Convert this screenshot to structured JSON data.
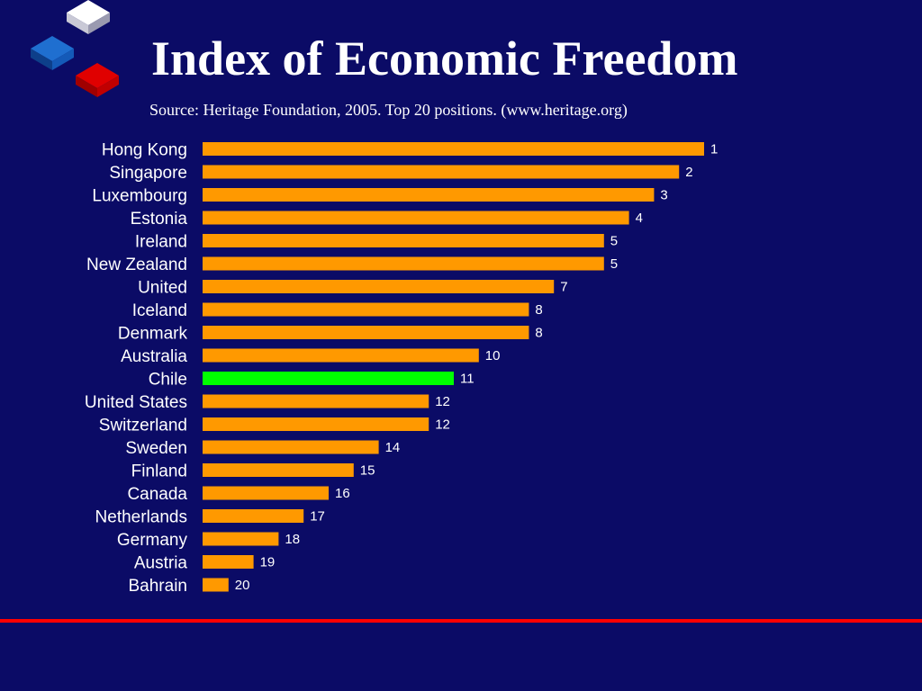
{
  "header": {
    "title": "Index of Economic Freedom",
    "subtitle": "Source: Heritage Foundation, 2005. Top 20 positions. (www.heritage.org)"
  },
  "colors": {
    "background": "#0b0b66",
    "bar": "#ff9900",
    "highlight_bar": "#00ff00",
    "divider": "#ff0000",
    "logo_white": "#ffffff",
    "logo_blue": "#1f6fd0",
    "logo_red": "#e00000"
  },
  "chart_data": {
    "type": "bar",
    "orientation": "horizontal",
    "categories": [
      "Hong Kong",
      "Singapore",
      "Luxembourg",
      "Estonia",
      "Ireland",
      "New Zealand",
      "United",
      "Iceland",
      "Denmark",
      "Australia",
      "Chile",
      "United States",
      "Switzerland",
      "Sweden",
      "Finland",
      "Canada",
      "Netherlands",
      "Germany",
      "Austria",
      "Bahrain"
    ],
    "values": [
      1,
      2,
      3,
      4,
      5,
      5,
      7,
      8,
      8,
      10,
      11,
      12,
      12,
      14,
      15,
      16,
      17,
      18,
      19,
      20
    ],
    "highlight": "Chile",
    "grid": false,
    "legend": "none"
  }
}
